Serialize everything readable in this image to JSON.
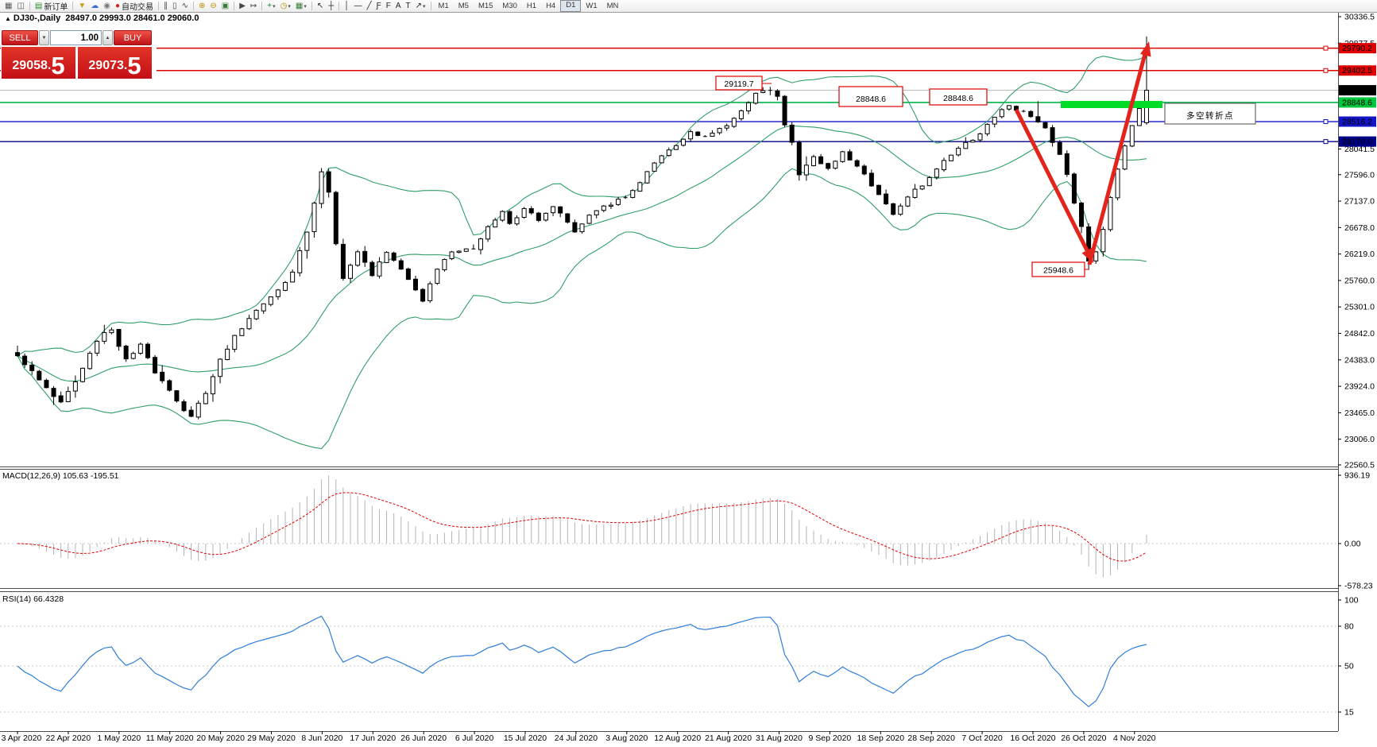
{
  "toolbar": {
    "icons": [
      {
        "name": "new-chart-icon",
        "glyph": "▦",
        "color": "#555555"
      },
      {
        "name": "chart-preview-icon",
        "glyph": "◫",
        "color": "#555555"
      },
      {
        "sep": true
      },
      {
        "name": "new-order-button",
        "glyph": "▤",
        "color": "#2e8b2e",
        "label": "新订单"
      },
      {
        "sep": true
      },
      {
        "name": "indicator-funnel-icon",
        "glyph": "▼",
        "color": "#c8a020"
      },
      {
        "name": "market-depth-icon",
        "glyph": "☁",
        "color": "#3b6fd4"
      },
      {
        "name": "signal-icon",
        "glyph": "◉",
        "color": "#777777"
      },
      {
        "name": "autotrade-button",
        "glyph": "●",
        "color": "#cc2222",
        "label": "自动交易"
      },
      {
        "sep": true
      },
      {
        "name": "bar-chart-icon",
        "glyph": "∥",
        "color": "#444444"
      },
      {
        "name": "candlestick-chart-icon",
        "glyph": "▯",
        "color": "#444444"
      },
      {
        "name": "line-chart-icon",
        "glyph": "∿",
        "color": "#444444"
      },
      {
        "sep": true
      },
      {
        "name": "zoom-in-icon",
        "glyph": "⊕",
        "color": "#b58a00"
      },
      {
        "name": "zoom-out-icon",
        "glyph": "⊖",
        "color": "#b58a00"
      },
      {
        "name": "tile-windows-icon",
        "glyph": "▣",
        "color": "#3a7a3a"
      },
      {
        "sep": true
      },
      {
        "name": "auto-scroll-icon",
        "glyph": "▶",
        "color": "#444444"
      },
      {
        "name": "chart-shift-icon",
        "glyph": "↦",
        "color": "#444444"
      },
      {
        "sep": true
      },
      {
        "name": "add-indicator-icon",
        "glyph": "+",
        "color": "#1a8a1a",
        "caret": true
      },
      {
        "name": "period-icon",
        "glyph": "◷",
        "color": "#b58a00",
        "caret": true
      },
      {
        "name": "template-icon",
        "glyph": "▦",
        "color": "#3a7a3a",
        "caret": true
      },
      {
        "sep": true
      },
      {
        "name": "cursor-icon",
        "glyph": "↖",
        "color": "#222222"
      },
      {
        "name": "crosshair-icon",
        "glyph": "┼",
        "color": "#222222"
      },
      {
        "sep": true
      },
      {
        "name": "vertical-line-icon",
        "glyph": "│",
        "color": "#222222"
      },
      {
        "name": "horizontal-line-icon",
        "glyph": "—",
        "color": "#222222"
      },
      {
        "name": "trendline-icon",
        "glyph": "╱",
        "color": "#222222"
      },
      {
        "name": "fibonacci-icon",
        "glyph": "Ƒ",
        "color": "#222222"
      },
      {
        "name": "channel-icon",
        "glyph": "F",
        "color": "#222222"
      },
      {
        "name": "text-icon",
        "glyph": "A",
        "color": "#222222"
      },
      {
        "name": "text-label-icon",
        "glyph": "T",
        "color": "#222222"
      },
      {
        "name": "arrows-icon",
        "glyph": "↗",
        "color": "#222222",
        "caret": true
      },
      {
        "sep": true
      }
    ],
    "timeframes": [
      "M1",
      "M5",
      "M15",
      "M30",
      "H1",
      "H4",
      "D1",
      "W1",
      "MN"
    ],
    "active_timeframe": "D1"
  },
  "chart_header": {
    "collapse_arrow": "▲",
    "symbol_label": "DJ30-,Daily",
    "ohlc_label": "28497.0 29993.0 28461.0 29060.0"
  },
  "trade_panel": {
    "sell_label": "SELL",
    "buy_label": "BUY",
    "volume": "1.00",
    "spin_down": "▼",
    "spin_up": "▲",
    "sell_price_main": "29058",
    "sell_price_frac": "5",
    "buy_price_main": "29073",
    "buy_price_frac": "5",
    "decimal_point": "."
  },
  "price_tags": [
    {
      "label": "29790.2",
      "value": 29790.2,
      "bg": "#e00000",
      "fg": "#ffffff"
    },
    {
      "label": "29402.5",
      "value": 29402.5,
      "bg": "#e00000",
      "fg": "#ffffff"
    },
    {
      "label": "29060.0",
      "value": 29060.0,
      "bg": "#000000",
      "fg": "#ffffff"
    },
    {
      "label": "28848.6",
      "value": 28848.6,
      "bg": "#00c83c",
      "fg": "#000000"
    },
    {
      "label": "28516.2",
      "value": 28516.2,
      "bg": "#1515c8",
      "fg": "#ffffff"
    },
    {
      "label": "28170.0",
      "value": 28170.0,
      "bg": "#000089",
      "fg": "#ffffff"
    }
  ],
  "annotations": {
    "sep_high_label": "29119.7",
    "resistance_label_large": "28848.6",
    "resistance_label_small": "28848.6",
    "oct_low_label": "25948.6",
    "turning_point_label": "多空转折点"
  },
  "macd_panel": {
    "label": "MACD(12,26,9) 105.63 -195.51",
    "axis_labels": [
      "936.19",
      "0.00",
      "-578.23"
    ]
  },
  "rsi_panel": {
    "label": "RSI(14) 66.4328",
    "axis_labels": [
      "100",
      "80",
      "50",
      "15"
    ]
  },
  "chart_data": {
    "type": "candlestick",
    "symbol": "DJ30",
    "period": "Daily",
    "current_bar_ohlc": {
      "open": 28497.0,
      "high": 29993.0,
      "low": 28461.0,
      "close": 29060.0
    },
    "visible_range": {
      "price_min": 22560.5,
      "price_max": 30336.5,
      "date_start": "3 Apr 2020",
      "date_end": "4 Nov 2020"
    },
    "bar_count": 157,
    "close_keyframes": [
      [
        0,
        24450
      ],
      [
        2,
        24200
      ],
      [
        4,
        23900
      ],
      [
        6,
        23650
      ],
      [
        8,
        24000
      ],
      [
        10,
        24500
      ],
      [
        12,
        24850
      ],
      [
        13,
        24900
      ],
      [
        15,
        24400
      ],
      [
        17,
        24650
      ],
      [
        19,
        24150
      ],
      [
        21,
        23850
      ],
      [
        23,
        23500
      ],
      [
        24,
        23400
      ],
      [
        26,
        23800
      ],
      [
        28,
        24400
      ],
      [
        30,
        24800
      ],
      [
        32,
        25100
      ],
      [
        34,
        25350
      ],
      [
        36,
        25600
      ],
      [
        38,
        25900
      ],
      [
        40,
        26600
      ],
      [
        42,
        27650
      ],
      [
        43,
        27300
      ],
      [
        44,
        26400
      ],
      [
        45,
        25800
      ],
      [
        47,
        26250
      ],
      [
        49,
        25850
      ],
      [
        51,
        26250
      ],
      [
        53,
        25950
      ],
      [
        56,
        25400
      ],
      [
        58,
        25950
      ],
      [
        60,
        26250
      ],
      [
        63,
        26300
      ],
      [
        65,
        26700
      ],
      [
        67,
        26950
      ],
      [
        68,
        26750
      ],
      [
        70,
        27000
      ],
      [
        72,
        26800
      ],
      [
        74,
        27050
      ],
      [
        77,
        26600
      ],
      [
        79,
        26900
      ],
      [
        81,
        27050
      ],
      [
        84,
        27200
      ],
      [
        86,
        27450
      ],
      [
        88,
        27800
      ],
      [
        91,
        28100
      ],
      [
        93,
        28350
      ],
      [
        95,
        28250
      ],
      [
        98,
        28450
      ],
      [
        100,
        28700
      ],
      [
        102,
        29000
      ],
      [
        104,
        29060
      ],
      [
        105,
        28950
      ],
      [
        106,
        28450
      ],
      [
        107,
        28150
      ],
      [
        108,
        27600
      ],
      [
        110,
        27900
      ],
      [
        112,
        27700
      ],
      [
        114,
        28000
      ],
      [
        116,
        27750
      ],
      [
        118,
        27400
      ],
      [
        119,
        27250
      ],
      [
        121,
        26900
      ],
      [
        123,
        27200
      ],
      [
        126,
        27550
      ],
      [
        128,
        27850
      ],
      [
        130,
        28050
      ],
      [
        133,
        28300
      ],
      [
        135,
        28600
      ],
      [
        137,
        28800
      ],
      [
        139,
        28700
      ],
      [
        140,
        28600
      ],
      [
        142,
        28400
      ],
      [
        144,
        27950
      ],
      [
        145,
        27600
      ],
      [
        146,
        27100
      ],
      [
        147,
        26700
      ],
      [
        148,
        26100
      ],
      [
        149,
        26250
      ],
      [
        150,
        26650
      ],
      [
        151,
        27200
      ],
      [
        152,
        27700
      ],
      [
        153,
        28100
      ],
      [
        154,
        28450
      ],
      [
        155,
        28750
      ],
      [
        156,
        29060
      ]
    ],
    "bar_overrides": {
      "104": {
        "high": 29119.7
      },
      "141": {
        "high": 28870
      },
      "148": {
        "low": 25948.6
      },
      "156": {
        "open": 28497.0,
        "high": 29993.0,
        "low": 28461.0,
        "close": 29060.0
      }
    },
    "key_points": {
      "sep_high": 29119.7,
      "resistance": 28848.6,
      "oct_low": 25948.6,
      "last_close": 29060.0
    },
    "horizontal_lines": [
      {
        "value": 29790.2,
        "color": "#dd0000",
        "width": 1.4,
        "handle": true
      },
      {
        "value": 29402.5,
        "color": "#dd0000",
        "width": 1.4,
        "handle": true
      },
      {
        "value": 29060.0,
        "color": "#b4b4b4",
        "width": 1,
        "handle": false,
        "role": "bid-line"
      },
      {
        "value": 28848.6,
        "color": "#00b44a",
        "width": 1.6,
        "handle": false
      },
      {
        "value": 28516.2,
        "color": "#1515c8",
        "width": 1.4,
        "handle": true
      },
      {
        "value": 28170.0,
        "color": "#000089",
        "width": 1.4,
        "handle": true
      }
    ],
    "price_axis_ticks": [
      "30336.5",
      "29877.5",
      "28041.5",
      "27596.0",
      "27137.0",
      "26678.0",
      "26219.0",
      "25760.0",
      "25301.0",
      "24842.0",
      "24383.0",
      "23924.0",
      "23465.0",
      "23006.0",
      "22560.5"
    ],
    "indicators": [
      {
        "name": "Bollinger Bands",
        "color": "#2f9e68"
      },
      {
        "name": "MACD",
        "params": "12,26,9",
        "values": [
          105.63,
          -195.51
        ],
        "axis_range": [
          936.19,
          0.0,
          -578.23
        ],
        "histogram_color": "#b4b4b4",
        "signal_color": "#e00000"
      },
      {
        "name": "RSI",
        "params": "14",
        "value": 66.4328,
        "levels": [
          100,
          80,
          50,
          15
        ],
        "line_color": "#2f7ed8"
      }
    ],
    "time_axis_labels": [
      "3 Apr 2020",
      "22 Apr 2020",
      "1 May 2020",
      "11 May 2020",
      "20 May 2020",
      "29 May 2020",
      "8 Jun 2020",
      "17 Jun 2020",
      "26 Jun 2020",
      "6 Jul 2020",
      "15 Jul 2020",
      "24 Jul 2020",
      "3 Aug 2020",
      "12 Aug 2020",
      "21 Aug 2020",
      "31 Aug 2020",
      "9 Sep 2020",
      "18 Sep 2020",
      "28 Sep 2020",
      "7 Oct 2020",
      "16 Oct 2020",
      "26 Oct 2020",
      "4 Nov 2020"
    ],
    "drawing_colors": {
      "arrow_red": "#e2241c",
      "green_bar": "#00dc28",
      "label_red": "#e00000",
      "turning_point_green": "#00cc44"
    }
  }
}
